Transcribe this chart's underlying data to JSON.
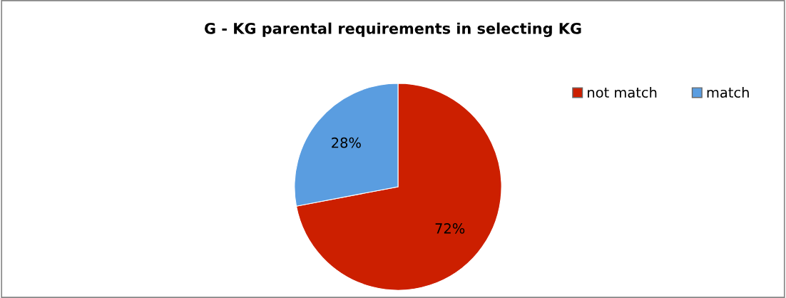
{
  "chart_data": {
    "type": "pie",
    "title": "G - KG parental requirements in selecting KG",
    "categories": [
      "not match",
      "match"
    ],
    "values": [
      72,
      28
    ],
    "colors": [
      "#cc1f00",
      "#5a9de0"
    ],
    "value_labels": [
      "72%",
      "28%"
    ],
    "legend": "top right"
  }
}
